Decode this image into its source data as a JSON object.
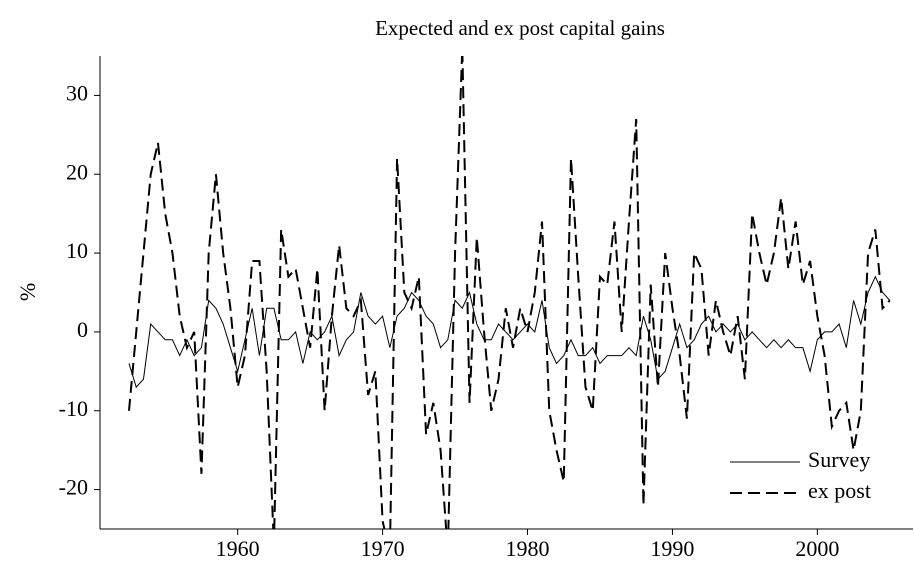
{
  "chart_data": {
    "type": "line",
    "title": "Expected and ex post capital gains",
    "y_label": "%",
    "x": [
      1952.5,
      1953,
      1953.5,
      1954,
      1954.5,
      1955,
      1955.5,
      1956,
      1956.5,
      1957,
      1957.5,
      1958,
      1958.5,
      1959,
      1959.5,
      1960,
      1960.5,
      1961,
      1961.5,
      1962,
      1962.5,
      1963,
      1963.5,
      1964,
      1964.5,
      1965,
      1965.5,
      1966,
      1966.5,
      1967,
      1967.5,
      1968,
      1968.5,
      1969,
      1969.5,
      1970,
      1970.5,
      1971,
      1971.5,
      1972,
      1972.5,
      1973,
      1973.5,
      1974,
      1974.5,
      1975,
      1975.5,
      1976,
      1976.5,
      1977,
      1977.5,
      1978,
      1978.5,
      1979,
      1979.5,
      1980,
      1980.5,
      1981,
      1981.5,
      1982,
      1982.5,
      1983,
      1983.5,
      1984,
      1984.5,
      1985,
      1985.5,
      1986,
      1986.5,
      1987,
      1987.5,
      1988,
      1988.5,
      1989,
      1989.5,
      1990,
      1990.5,
      1991,
      1991.5,
      1992,
      1992.5,
      1993,
      1993.5,
      1994,
      1994.5,
      1995,
      1995.5,
      1996,
      1996.5,
      1997,
      1997.5,
      1998,
      1998.5,
      1999,
      1999.5,
      2000,
      2000.5,
      2001,
      2001.5,
      2002,
      2002.5,
      2003,
      2003.5,
      2004,
      2004.5,
      2005
    ],
    "series": [
      {
        "name": "Survey",
        "color": "#000000",
        "dash": false,
        "values": [
          -4,
          -7,
          -6,
          1,
          0,
          -1,
          -1,
          -3,
          -1,
          -3,
          -2,
          4,
          3,
          1,
          -2,
          -5,
          -1,
          3,
          -3,
          3,
          3,
          -1,
          -1,
          0,
          -4,
          0,
          -1,
          0,
          2,
          -3,
          -1,
          0,
          5,
          2,
          1,
          2,
          -2,
          2,
          3,
          5,
          4,
          2,
          1,
          -2,
          -1,
          4,
          3,
          5,
          1,
          -1,
          -1,
          1,
          0,
          -1,
          0,
          1,
          0,
          4,
          -2,
          -4,
          -3,
          -1,
          -3,
          -3,
          -2,
          -4,
          -3,
          -3,
          -3,
          -2,
          -3,
          2,
          -1,
          -6,
          -5,
          -2,
          1,
          -2,
          -1,
          1,
          2,
          0,
          1,
          0,
          1,
          -1,
          0,
          -1,
          -2,
          -1,
          -2,
          -1,
          -2,
          -2,
          -5,
          -1,
          0,
          0,
          1,
          -2,
          4,
          1,
          5,
          7,
          5,
          4
        ]
      },
      {
        "name": "ex post",
        "color": "#000000",
        "dash": true,
        "values": [
          -10,
          0,
          10,
          20,
          24,
          15,
          10,
          2,
          -2,
          0,
          -18,
          10,
          20,
          10,
          3,
          -7,
          -3,
          9,
          9,
          -5,
          -27,
          13,
          7,
          8,
          3,
          -2,
          8,
          -10,
          2,
          11,
          3,
          2,
          4,
          -8,
          -5,
          -24,
          -28,
          22,
          5,
          3,
          7,
          -13,
          -9,
          -15,
          -28,
          10,
          36,
          -9,
          12,
          0,
          -10,
          -6,
          3,
          -2,
          3,
          0,
          5,
          14,
          -10,
          -15,
          -19,
          22,
          7,
          -7,
          -10,
          7,
          6,
          14,
          0,
          14,
          27,
          -22,
          6,
          -7,
          10,
          3,
          -3,
          -11,
          10,
          8,
          -3,
          4,
          0,
          -3,
          2,
          -6,
          15,
          10,
          6,
          10,
          17,
          8,
          14,
          6,
          9,
          2,
          -3,
          -12,
          -10,
          -9,
          -15,
          -10,
          10,
          13,
          3,
          4
        ]
      }
    ],
    "xlim": [
      1950.5,
      2006.6
    ],
    "ylim": [
      -25,
      35
    ],
    "xticks": [
      1960,
      1970,
      1980,
      1990,
      2000
    ],
    "yticks": [
      -20,
      -10,
      0,
      10,
      20,
      30
    ],
    "legend": "lower right"
  }
}
